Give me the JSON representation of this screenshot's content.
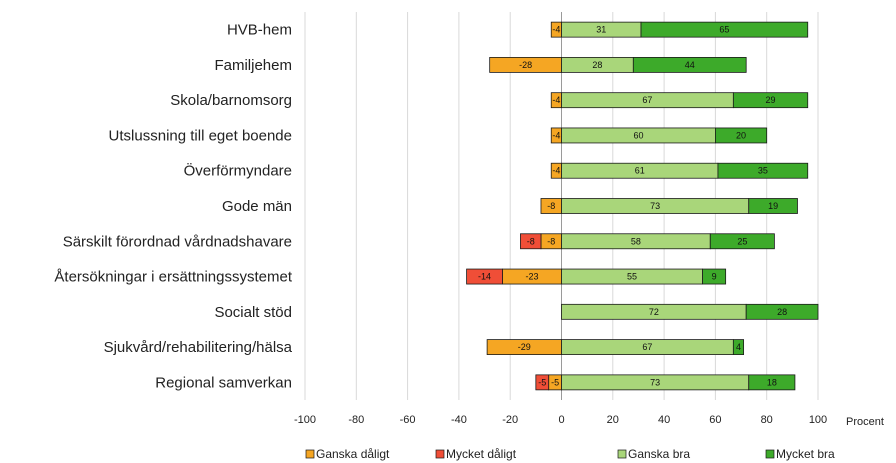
{
  "chart_data": {
    "type": "bar",
    "orientation": "horizontal",
    "stacked": true,
    "categories": [
      "HVB-hem",
      "Familjehem",
      "Skola/barnomsorg",
      "Utslussning till eget boende",
      "Överförmyndare",
      "Gode män",
      "Särskilt förordnad vårdnadshavare",
      "Återsökningar i ersättningssystemet",
      "Socialt stöd",
      "Sjukvård/rehabilitering/hälsa",
      "Regional samverkan"
    ],
    "series": [
      {
        "name": "Ganska dåligt",
        "color": "#F5A623",
        "values": [
          -4,
          -28,
          -4,
          -4,
          -4,
          -8,
          -8,
          -23,
          0,
          -29,
          -5
        ]
      },
      {
        "name": "Mycket dåligt",
        "color": "#F04E37",
        "values": [
          0,
          0,
          0,
          0,
          0,
          0,
          -8,
          -14,
          0,
          0,
          -5
        ]
      },
      {
        "name": "Ganska bra",
        "color": "#A9D67A",
        "values": [
          31,
          28,
          67,
          60,
          61,
          73,
          58,
          55,
          72,
          67,
          73
        ]
      },
      {
        "name": "Mycket bra",
        "color": "#3DAA2A",
        "values": [
          65,
          44,
          29,
          20,
          35,
          19,
          25,
          9,
          28,
          4,
          18
        ]
      }
    ],
    "xlim": [
      -100,
      100
    ],
    "xticks": [
      -100,
      -80,
      -60,
      -40,
      -20,
      0,
      20,
      40,
      60,
      80,
      100
    ],
    "xlabel": "Procent",
    "grid": true,
    "legend_position": "bottom"
  }
}
